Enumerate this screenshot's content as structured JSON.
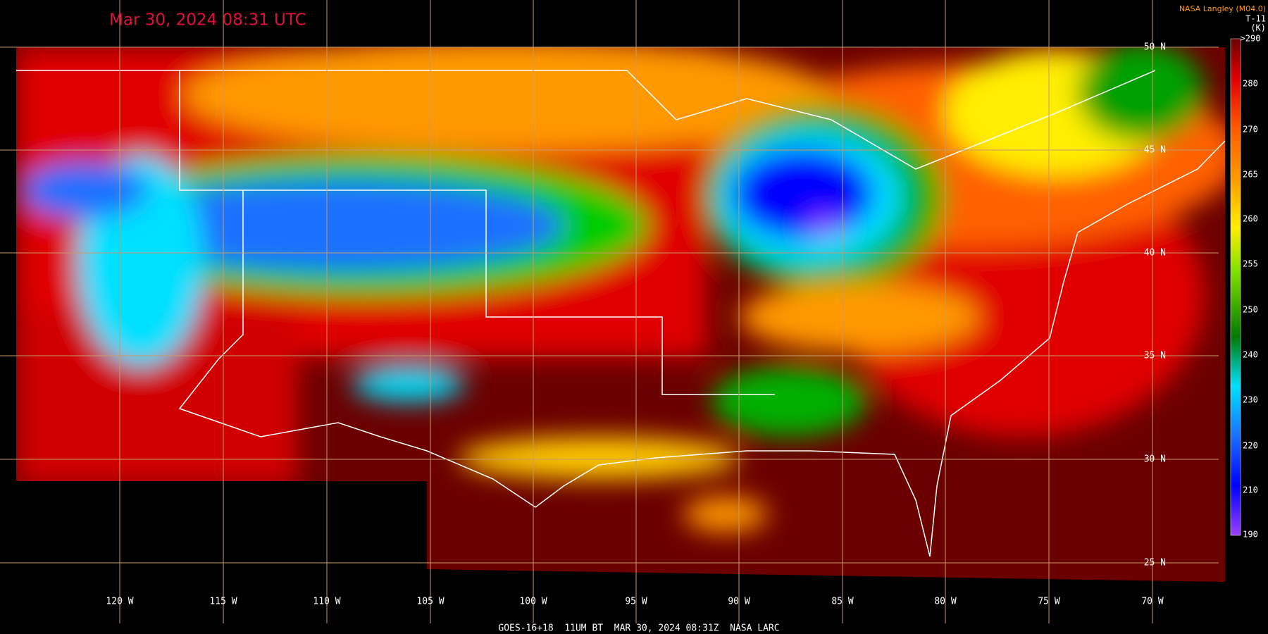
{
  "title": "Mar 30, 2024 08:31 UTC",
  "credit": "NASA Langley (M04.0)",
  "footer": "GOES-16+18  11UM BT  MAR 30, 2024 08:31Z  NASA LARC",
  "colorbar": {
    "channel": "T-11",
    "unit": "(K)",
    "labels": [
      ">290",
      "280",
      "270",
      "265",
      "260",
      "255",
      "250",
      "240",
      "230",
      "220",
      "210",
      "190"
    ]
  },
  "latitude_labels": [
    "50 N",
    "45 N",
    "40 N",
    "35 N",
    "30 N",
    "25 N"
  ],
  "longitude_labels": [
    "120 W",
    "115 W",
    "110 W",
    "105 W",
    "100 W",
    "95 W",
    "90 W",
    "85 W",
    "80 W",
    "75 W",
    "70 W"
  ]
}
